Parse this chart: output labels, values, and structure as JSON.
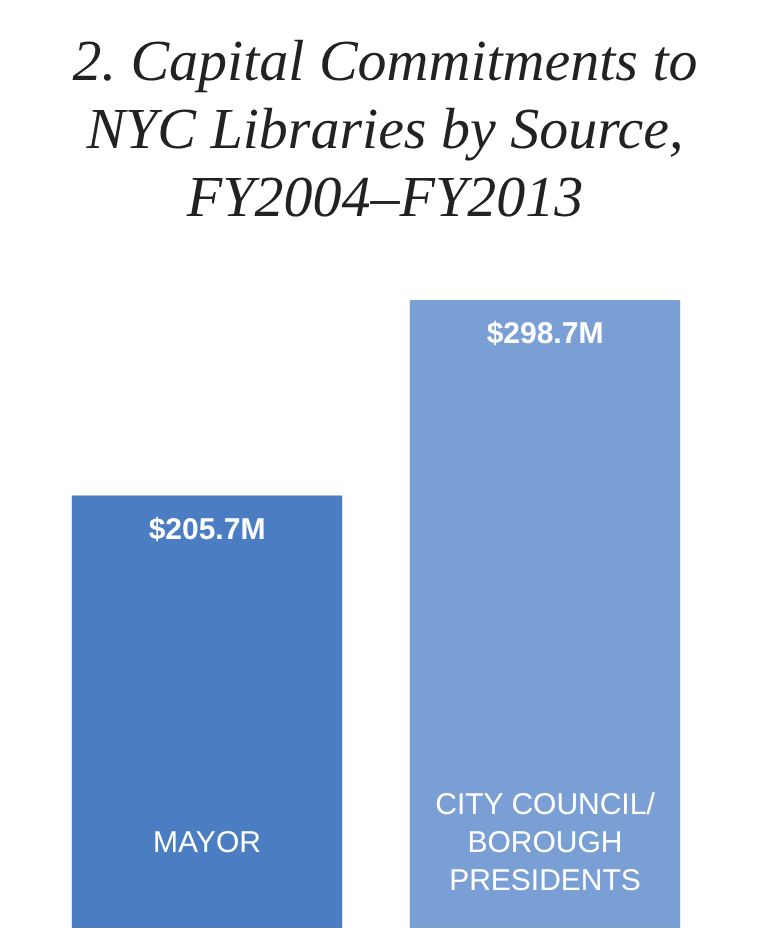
{
  "chart_data": {
    "type": "bar",
    "title": "2. Capital Commitments to NYC Libraries by Source, FY2004–FY2013",
    "categories": [
      "MAYOR",
      "CITY COUNCIL/ BOROUGH PRESIDENTS"
    ],
    "values": [
      205.7,
      298.7
    ],
    "colors": [
      "#4a7dc1",
      "#7a9fd4"
    ],
    "value_labels": [
      "$205.7M",
      "$298.7M"
    ],
    "grid": false,
    "legend": false,
    "tick_labels": false
  }
}
